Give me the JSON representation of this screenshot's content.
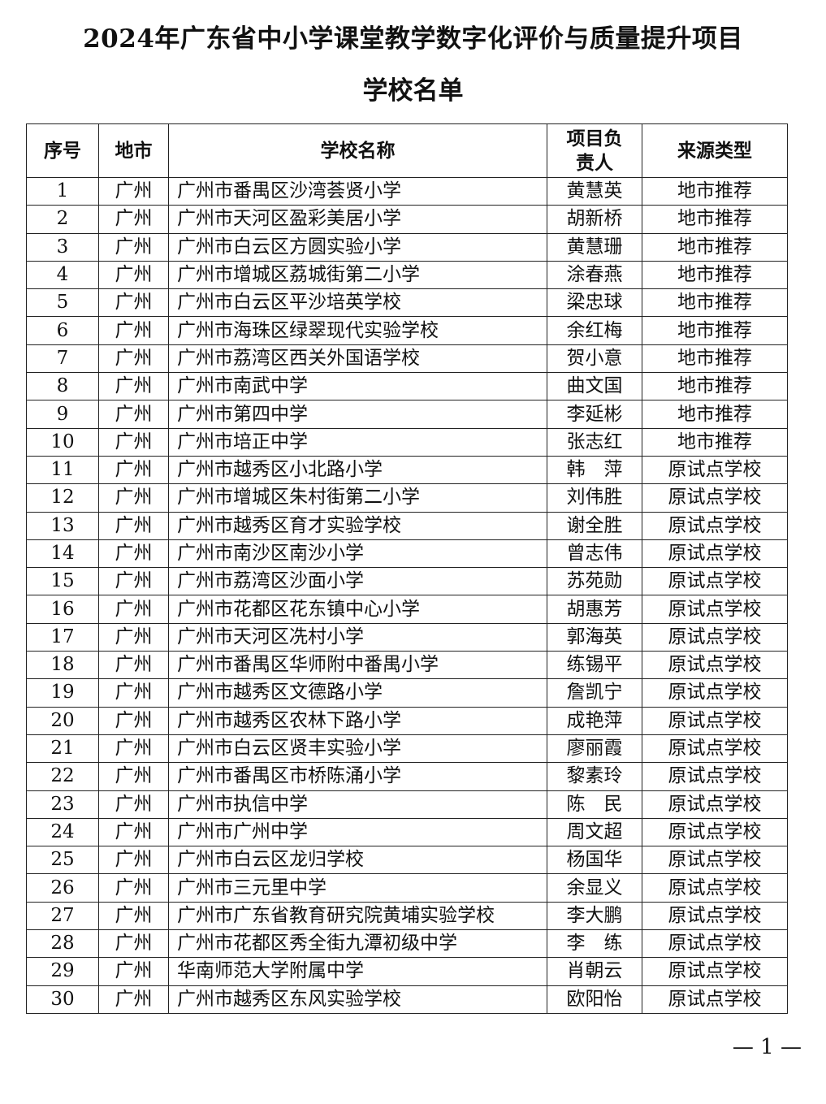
{
  "title": "2024年广东省中小学课堂教学数字化评价与质量提升项目",
  "subtitle": "学校名单",
  "table": {
    "headers": [
      "序号",
      "地市",
      "学校名称",
      "项目负责人",
      "来源类型"
    ],
    "rows": [
      [
        "1",
        "广州",
        "广州市番禺区沙湾荟贤小学",
        "黄慧英",
        "地市推荐"
      ],
      [
        "2",
        "广州",
        "广州市天河区盈彩美居小学",
        "胡新桥",
        "地市推荐"
      ],
      [
        "3",
        "广州",
        "广州市白云区方圆实验小学",
        "黄慧珊",
        "地市推荐"
      ],
      [
        "4",
        "广州",
        "广州市增城区荔城街第二小学",
        "涂春燕",
        "地市推荐"
      ],
      [
        "5",
        "广州",
        "广州市白云区平沙培英学校",
        "梁忠球",
        "地市推荐"
      ],
      [
        "6",
        "广州",
        "广州市海珠区绿翠现代实验学校",
        "余红梅",
        "地市推荐"
      ],
      [
        "7",
        "广州",
        "广州市荔湾区西关外国语学校",
        "贺小意",
        "地市推荐"
      ],
      [
        "8",
        "广州",
        "广州市南武中学",
        "曲文国",
        "地市推荐"
      ],
      [
        "9",
        "广州",
        "广州市第四中学",
        "李延彬",
        "地市推荐"
      ],
      [
        "10",
        "广州",
        "广州市培正中学",
        "张志红",
        "地市推荐"
      ],
      [
        "11",
        "广州",
        "广州市越秀区小北路小学",
        "韩　萍",
        "原试点学校"
      ],
      [
        "12",
        "广州",
        "广州市增城区朱村街第二小学",
        "刘伟胜",
        "原试点学校"
      ],
      [
        "13",
        "广州",
        "广州市越秀区育才实验学校",
        "谢全胜",
        "原试点学校"
      ],
      [
        "14",
        "广州",
        "广州市南沙区南沙小学",
        "曾志伟",
        "原试点学校"
      ],
      [
        "15",
        "广州",
        "广州市荔湾区沙面小学",
        "苏苑勋",
        "原试点学校"
      ],
      [
        "16",
        "广州",
        "广州市花都区花东镇中心小学",
        "胡惠芳",
        "原试点学校"
      ],
      [
        "17",
        "广州",
        "广州市天河区冼村小学",
        "郭海英",
        "原试点学校"
      ],
      [
        "18",
        "广州",
        "广州市番禺区华师附中番禺小学",
        "练锡平",
        "原试点学校"
      ],
      [
        "19",
        "广州",
        "广州市越秀区文德路小学",
        "詹凯宁",
        "原试点学校"
      ],
      [
        "20",
        "广州",
        "广州市越秀区农林下路小学",
        "成艳萍",
        "原试点学校"
      ],
      [
        "21",
        "广州",
        "广州市白云区贤丰实验小学",
        "廖丽霞",
        "原试点学校"
      ],
      [
        "22",
        "广州",
        "广州市番禺区市桥陈涌小学",
        "黎素玲",
        "原试点学校"
      ],
      [
        "23",
        "广州",
        "广州市执信中学",
        "陈　民",
        "原试点学校"
      ],
      [
        "24",
        "广州",
        "广州市广州中学",
        "周文超",
        "原试点学校"
      ],
      [
        "25",
        "广州",
        "广州市白云区龙归学校",
        "杨国华",
        "原试点学校"
      ],
      [
        "26",
        "广州",
        "广州市三元里中学",
        "余显义",
        "原试点学校"
      ],
      [
        "27",
        "广州",
        "广州市广东省教育研究院黄埔实验学校",
        "李大鹏",
        "原试点学校"
      ],
      [
        "28",
        "广州",
        "广州市花都区秀全街九潭初级中学",
        "李　练",
        "原试点学校"
      ],
      [
        "29",
        "广州",
        "华南师范大学附属中学",
        "肖朝云",
        "原试点学校"
      ],
      [
        "30",
        "广州",
        "广州市越秀区东风实验学校",
        "欧阳怡",
        "原试点学校"
      ]
    ]
  },
  "page_number": "— 1 —"
}
